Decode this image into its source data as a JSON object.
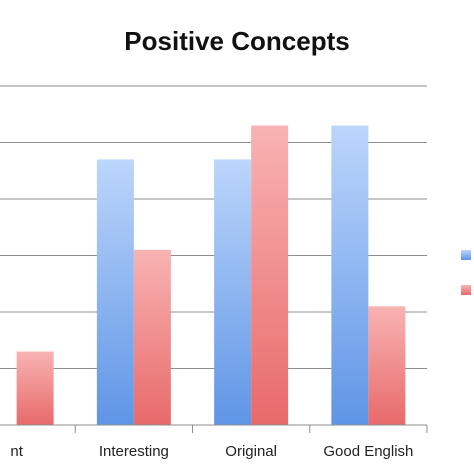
{
  "chart_data": {
    "type": "bar",
    "title": "Positive Concepts",
    "categories": [
      "Relevant",
      "Interesting",
      "Original",
      "Good English"
    ],
    "visible_category_labels": [
      "nt",
      "Interesting",
      "Original",
      "Good English"
    ],
    "series": [
      {
        "color_top": "#bcd6fb",
        "color_bottom": "#5f95e6",
        "values": [
          null,
          4.7,
          4.7,
          5.3
        ]
      },
      {
        "color_top": "#f9b3b3",
        "color_bottom": "#e86a6a",
        "values": [
          1.3,
          3.1,
          5.3,
          2.1
        ]
      }
    ],
    "ylim": [
      0,
      6
    ],
    "grid": true,
    "legend": "right"
  }
}
